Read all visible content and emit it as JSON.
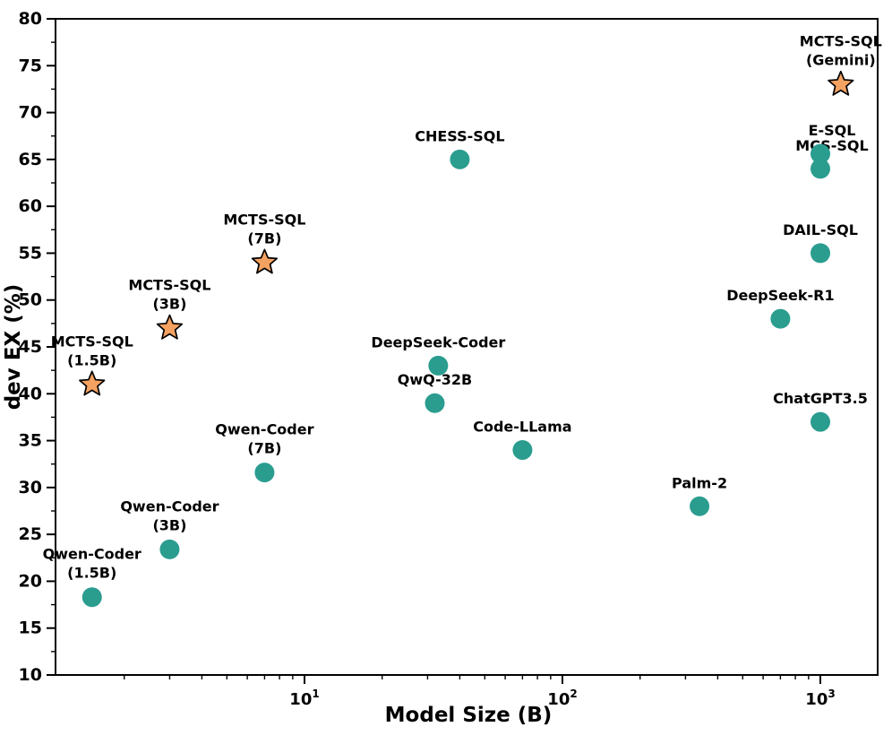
{
  "chart_data": {
    "type": "scatter",
    "title": "",
    "grid": false,
    "legend": null,
    "x_axis": {
      "label": "Model Size (B)",
      "scale": "log",
      "lim": [
        1.083,
        1668
      ],
      "major_ticks": [
        {
          "value": 10,
          "base": "10",
          "exp": "1"
        },
        {
          "value": 100,
          "base": "10",
          "exp": "2"
        },
        {
          "value": 1000,
          "base": "10",
          "exp": "3"
        }
      ],
      "minor_tick_multiples": [
        2,
        3,
        4,
        5,
        6,
        7,
        8,
        9
      ]
    },
    "y_axis": {
      "label": "dev EX (%)",
      "scale": "linear",
      "lim": [
        10,
        80
      ],
      "major_ticks": [
        10,
        15,
        20,
        25,
        30,
        35,
        40,
        45,
        50,
        55,
        60,
        65,
        70,
        75,
        80
      ],
      "minor_ticks": [
        12.5,
        17.5,
        22.5,
        27.5,
        32.5,
        37.5,
        42.5,
        47.5,
        52.5,
        57.5,
        62.5,
        67.5,
        72.5,
        77.5
      ]
    },
    "colors": {
      "circle_fill": "#2a9d8f",
      "star_fill": "#f4a261",
      "marker_stroke": "#000000",
      "axis": "#000000"
    },
    "series": [
      {
        "name": "baseline-models",
        "marker": "circle",
        "color": "#2a9d8f",
        "points": [
          {
            "label_lines": [
              "Qwen-Coder",
              "(1.5B)"
            ],
            "size_b": 1.5,
            "ex": 18.3
          },
          {
            "label_lines": [
              "Qwen-Coder",
              "(3B)"
            ],
            "size_b": 3,
            "ex": 23.4
          },
          {
            "label_lines": [
              "Qwen-Coder",
              "(7B)"
            ],
            "size_b": 7,
            "ex": 31.6
          },
          {
            "label_lines": [
              "QwQ-32B"
            ],
            "size_b": 32,
            "ex": 39
          },
          {
            "label_lines": [
              "DeepSeek-Coder"
            ],
            "size_b": 33,
            "ex": 43
          },
          {
            "label_lines": [
              "CHESS-SQL"
            ],
            "size_b": 40,
            "ex": 65
          },
          {
            "label_lines": [
              "Code-LLama"
            ],
            "size_b": 70,
            "ex": 34
          },
          {
            "label_lines": [
              "Palm-2"
            ],
            "size_b": 340,
            "ex": 28
          },
          {
            "label_lines": [
              "DeepSeek-R1"
            ],
            "size_b": 700,
            "ex": 48
          },
          {
            "label_lines": [
              "ChatGPT3.5"
            ],
            "size_b": 1000,
            "ex": 37
          },
          {
            "label_lines": [
              "DAIL-SQL"
            ],
            "size_b": 1000,
            "ex": 55
          },
          {
            "label_lines": [
              "MCS-SQL"
            ],
            "size_b": 1000,
            "ex": 64,
            "label_dx": 13
          },
          {
            "label_lines": [
              "E-SQL"
            ],
            "size_b": 1000,
            "ex": 65.6,
            "label_dx": 13
          }
        ]
      },
      {
        "name": "mcts-sql-models",
        "marker": "star",
        "color": "#f4a261",
        "points": [
          {
            "label_lines": [
              "MCTS-SQL",
              "(1.5B)"
            ],
            "size_b": 1.5,
            "ex": 41
          },
          {
            "label_lines": [
              "MCTS-SQL",
              "(3B)"
            ],
            "size_b": 3,
            "ex": 47
          },
          {
            "label_lines": [
              "MCTS-SQL",
              "(7B)"
            ],
            "size_b": 7,
            "ex": 54
          },
          {
            "label_lines": [
              "MCTS-SQL",
              "(Gemini)"
            ],
            "size_b": 1200,
            "ex": 73
          }
        ]
      }
    ]
  }
}
